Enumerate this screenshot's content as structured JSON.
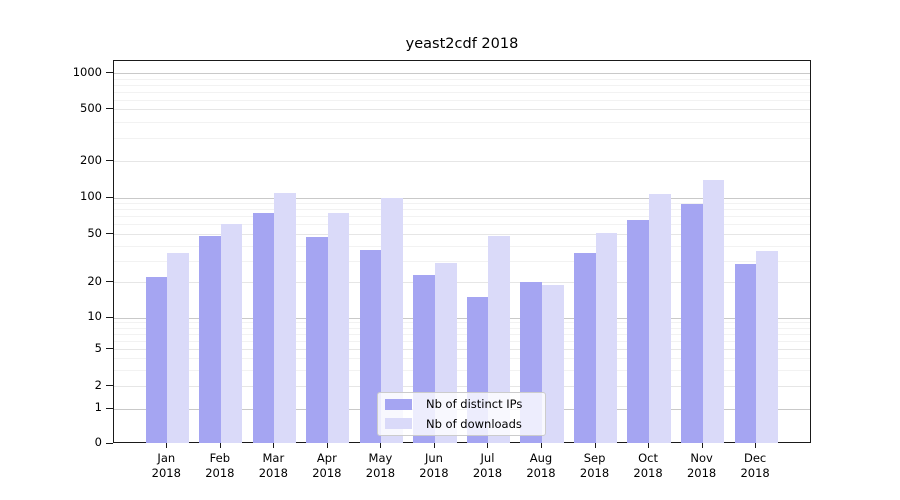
{
  "chart_data": {
    "type": "bar",
    "title": "yeast2cdf 2018",
    "x_categories": [
      "Jan",
      "Feb",
      "Mar",
      "Apr",
      "May",
      "Jun",
      "Jul",
      "Aug",
      "Sep",
      "Oct",
      "Nov",
      "Dec"
    ],
    "x_year_label": "2018",
    "series": [
      {
        "name": "Nb of distinct IPs",
        "color": "#a5a5f2",
        "values": [
          22,
          48,
          75,
          47,
          37,
          23,
          15,
          20,
          35,
          65,
          88,
          28
        ]
      },
      {
        "name": "Nb of downloads",
        "color": "#dadaf9",
        "values": [
          35,
          60,
          110,
          75,
          100,
          29,
          48,
          19,
          51,
          107,
          140,
          36
        ]
      }
    ],
    "y_ticks": [
      0,
      1,
      2,
      5,
      10,
      20,
      50,
      100,
      200,
      500,
      1000
    ],
    "y_scale": "symlog",
    "ylim": [
      0,
      1000
    ],
    "grid": "horizontal",
    "legend_position": "inside-bottom-center",
    "palette": {
      "grid_major": "#c9c9c9",
      "grid_mid": "#e6e6e6",
      "grid_minor": "#f2f2f2",
      "spine": "#1a1a1a",
      "legend_border": "#cccccc"
    }
  }
}
